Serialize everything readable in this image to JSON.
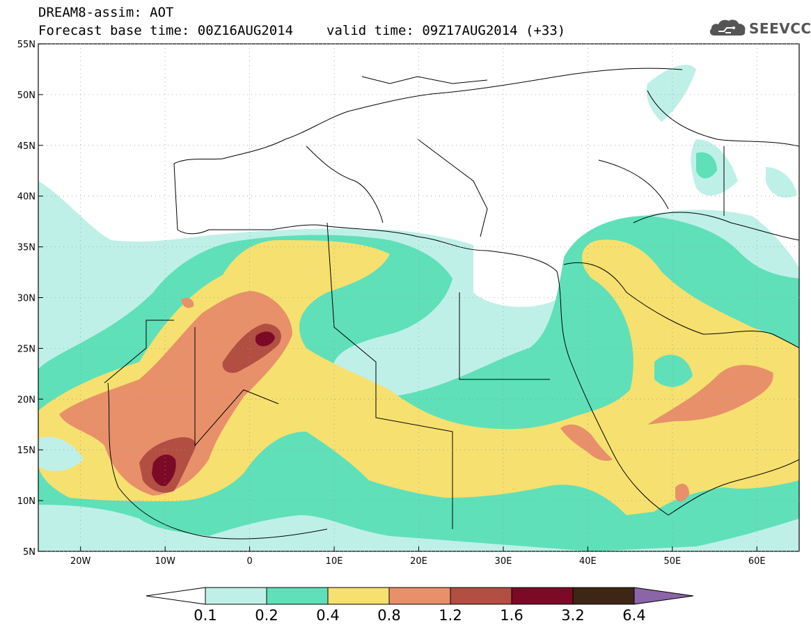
{
  "header": {
    "model_line": "DREAM8-assim: AOT",
    "base_time": "Forecast base time: 00Z16AUG2014",
    "valid_time": "valid time: 09Z17AUG2014 (+33)"
  },
  "logo": {
    "text": "SEEVCCC",
    "icon": "cloud-logo-icon"
  },
  "map": {
    "lon_range": [
      -25,
      65
    ],
    "lat_range": [
      5,
      55
    ],
    "lon_ticks": [
      {
        "value": -20,
        "label": "20W"
      },
      {
        "value": -10,
        "label": "10W"
      },
      {
        "value": 0,
        "label": "0"
      },
      {
        "value": 10,
        "label": "10E"
      },
      {
        "value": 20,
        "label": "20E"
      },
      {
        "value": 30,
        "label": "30E"
      },
      {
        "value": 40,
        "label": "40E"
      },
      {
        "value": 50,
        "label": "50E"
      },
      {
        "value": 60,
        "label": "60E"
      }
    ],
    "lat_ticks": [
      {
        "value": 5,
        "label": "5N"
      },
      {
        "value": 10,
        "label": "10N"
      },
      {
        "value": 15,
        "label": "15N"
      },
      {
        "value": 20,
        "label": "20N"
      },
      {
        "value": 25,
        "label": "25N"
      },
      {
        "value": 30,
        "label": "30N"
      },
      {
        "value": 35,
        "label": "35N"
      },
      {
        "value": 40,
        "label": "40N"
      },
      {
        "value": 45,
        "label": "45N"
      },
      {
        "value": 50,
        "label": "50N"
      },
      {
        "value": 55,
        "label": "55N"
      }
    ],
    "grid": "dotted"
  },
  "colorbar": {
    "low_color": "#ffffff",
    "high_color": "#8c64a8",
    "bins": [
      {
        "color": "#bff0e8"
      },
      {
        "color": "#5fe0b8"
      },
      {
        "color": "#f6e070"
      },
      {
        "color": "#e8906a"
      },
      {
        "color": "#b24e42"
      },
      {
        "color": "#7c0a26"
      },
      {
        "color": "#3e2614"
      }
    ],
    "labels": [
      "0.1",
      "0.2",
      "0.4",
      "0.8",
      "1.2",
      "1.6",
      "3.2",
      "6.4"
    ]
  }
}
